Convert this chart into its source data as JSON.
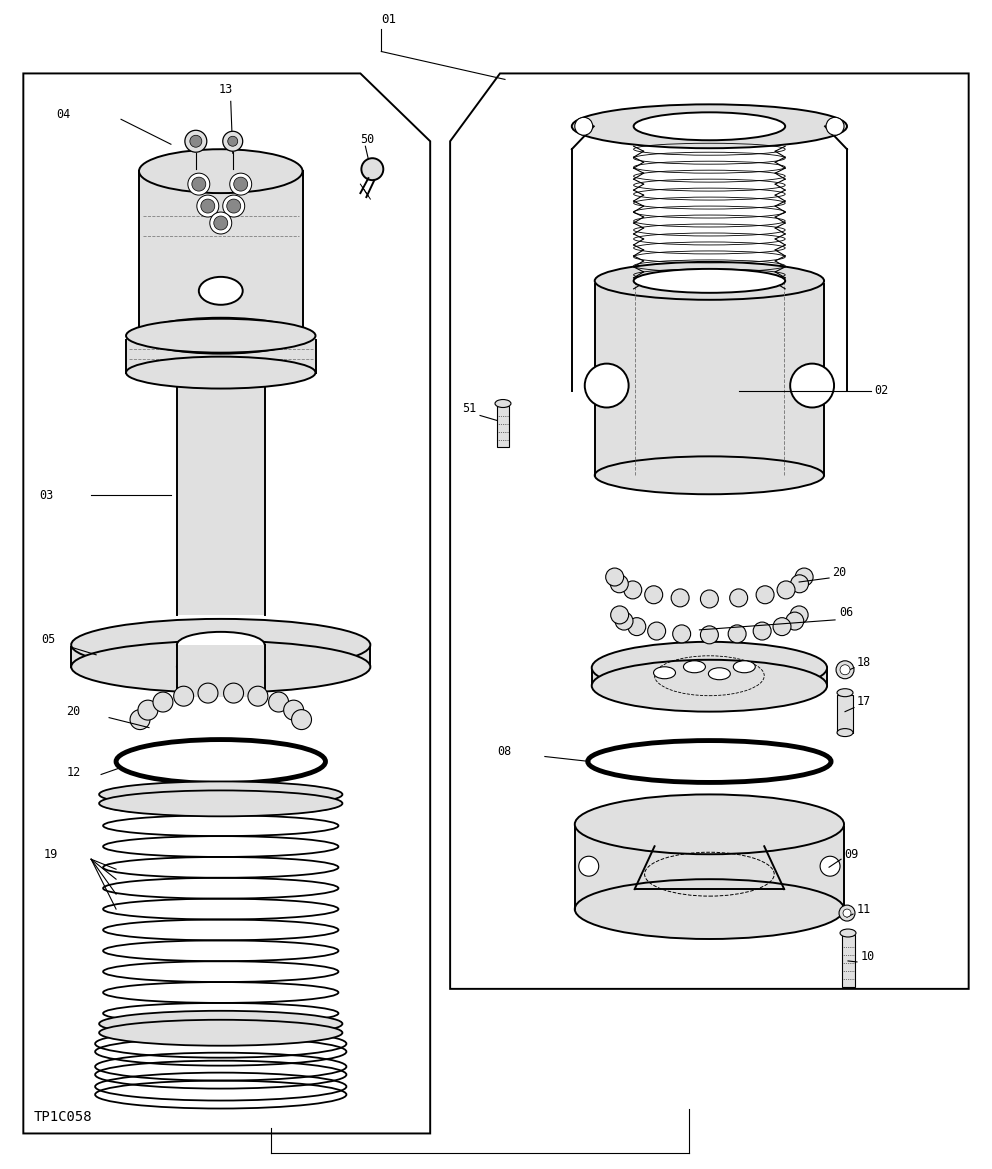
{
  "bg_color": "#ffffff",
  "line_color": "#000000",
  "gray_fill": "#d0d0d0",
  "light_gray": "#e0e0e0",
  "dark_gray": "#888888",
  "figure_width": 9.92,
  "figure_height": 11.69,
  "dpi": 100,
  "watermark": "TP1C058"
}
